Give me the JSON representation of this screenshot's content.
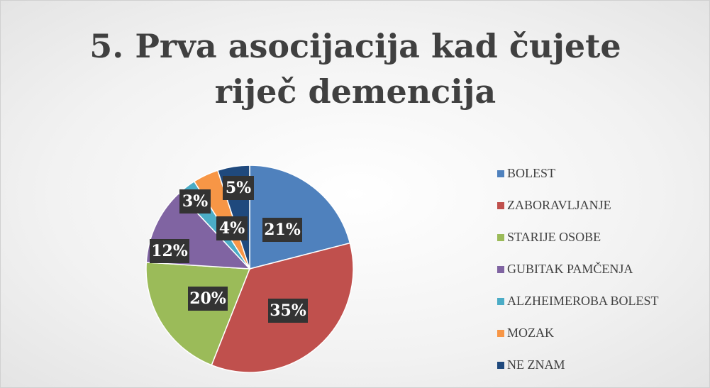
{
  "chart_data": {
    "type": "pie",
    "title": "5. Prva asocijacija kad čujete riječ demencija",
    "categories": [
      "BOLEST",
      "ZABORAVLJANJE",
      "STARIJE OSOBE",
      "GUBITAK PAMČENJA",
      "ALZHEIMEROBA BOLEST",
      "MOZAK",
      "NE ZNAM"
    ],
    "values": [
      21,
      35,
      20,
      12,
      3,
      4,
      5
    ],
    "value_labels": [
      "21%",
      "35%",
      "20%",
      "12%",
      "3%",
      "4%",
      "5%"
    ],
    "colors": [
      "#4f81bd",
      "#c0504d",
      "#9bbb59",
      "#8064a2",
      "#4bacc6",
      "#f79646",
      "#1f497d"
    ],
    "legend": "right"
  }
}
